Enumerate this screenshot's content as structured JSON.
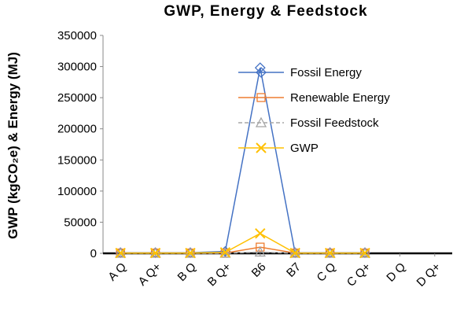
{
  "chart_data": {
    "type": "line",
    "title": "GWP, Energy & Feedstock",
    "y_label": "GWP (kgCO₂e) & Energy (MJ)",
    "categories": [
      "A Q",
      "A Q+",
      "B Q",
      "B Q+",
      "B6",
      "B7",
      "C Q",
      "C Q+",
      "D Q",
      "D Q+"
    ],
    "series": [
      {
        "name": "Fossil Energy",
        "color": "#4472c4",
        "marker": "diamond",
        "dash": false,
        "values": [
          1000,
          1000,
          1000,
          3000,
          298000,
          1000,
          1000,
          1000,
          null,
          null
        ]
      },
      {
        "name": "Renewable Energy",
        "color": "#ed7d31",
        "marker": "square",
        "dash": false,
        "values": [
          500,
          500,
          500,
          500,
          10000,
          500,
          500,
          500,
          null,
          null
        ]
      },
      {
        "name": "Fossil Feedstock",
        "color": "#a5a5a5",
        "marker": "triangle",
        "dash": true,
        "values": [
          0,
          0,
          0,
          0,
          2000,
          0,
          0,
          0,
          null,
          null
        ]
      },
      {
        "name": "GWP",
        "color": "#ffc000",
        "marker": "x",
        "dash": false,
        "values": [
          500,
          500,
          500,
          1500,
          32000,
          500,
          500,
          500,
          null,
          null
        ]
      }
    ],
    "ylim": [
      0,
      350000
    ],
    "yticks": [
      0,
      50000,
      100000,
      150000,
      200000,
      250000,
      300000,
      350000
    ],
    "grid": false
  }
}
